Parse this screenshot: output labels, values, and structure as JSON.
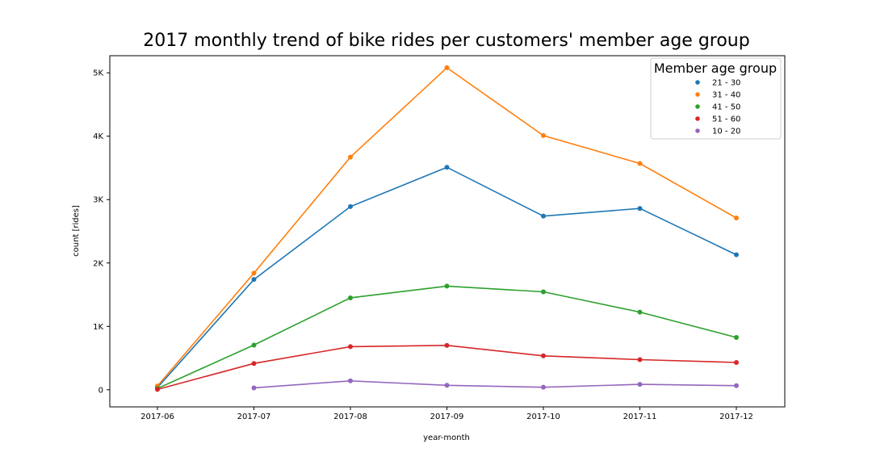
{
  "chart_data": {
    "type": "line",
    "title": "2017 monthly trend of bike rides per customers' member age group",
    "xlabel": "year-month",
    "ylabel": "count [rides]",
    "categories": [
      "2017-06",
      "2017-07",
      "2017-08",
      "2017-09",
      "2017-10",
      "2017-11",
      "2017-12"
    ],
    "ylim": [
      -270,
      5270
    ],
    "yticks": [
      0,
      1000,
      2000,
      3000,
      4000,
      5000
    ],
    "ytick_labels": [
      "0",
      "1K",
      "2K",
      "3K",
      "4K",
      "5K"
    ],
    "grid": false,
    "legend": {
      "title": "Member age group",
      "placement": "top-right"
    },
    "series": [
      {
        "name": "21 - 30",
        "color": "#1f77b4",
        "values": [
          35,
          1740,
          2890,
          3510,
          2740,
          2860,
          2130
        ]
      },
      {
        "name": "31 - 40",
        "color": "#ff7f0e",
        "values": [
          60,
          1840,
          3670,
          5080,
          4010,
          3570,
          2710
        ]
      },
      {
        "name": "41 - 50",
        "color": "#2ca02c",
        "values": [
          20,
          705,
          1450,
          1635,
          1545,
          1225,
          825
        ]
      },
      {
        "name": "51 - 60",
        "color": "#d62728",
        "values": [
          5,
          415,
          680,
          700,
          535,
          475,
          430
        ]
      },
      {
        "name": "10 - 20",
        "color": "#9467bd",
        "values": [
          null,
          30,
          140,
          70,
          40,
          85,
          65
        ]
      }
    ]
  }
}
